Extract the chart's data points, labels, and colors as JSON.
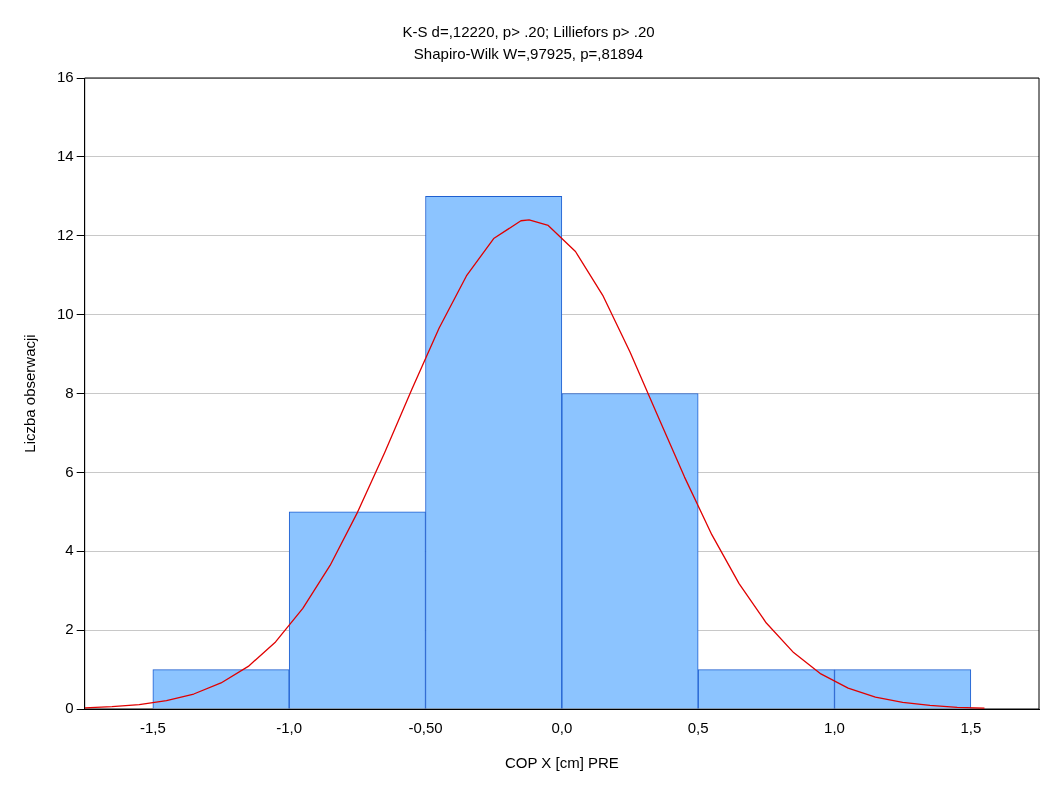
{
  "chart_data": {
    "type": "histogram",
    "title": "K-S d=,12220, p> .20; Lilliefors p> .20",
    "subtitle": "Shapiro-Wilk W=,97925, p=,81894",
    "xlabel": "COP X [cm] PRE",
    "ylabel": "Liczba obserwacji",
    "bins": [
      -1.5,
      -1.0,
      -0.5,
      0,
      0.5,
      1.0,
      1.5
    ],
    "values": [
      1,
      5,
      13,
      8,
      1,
      1
    ],
    "color": "#8cc4ff",
    "series": [
      {
        "type": "line",
        "color": "#e00000",
        "x": [
          -1.75,
          -1.65,
          -1.55,
          -1.45,
          -1.35,
          -1.25,
          -1.15,
          -1.05,
          -0.95,
          -0.85,
          -0.75,
          -0.65,
          -0.55,
          -0.45,
          -0.35,
          -0.25,
          -0.15,
          -0.12,
          -0.05,
          0.05,
          0.15,
          0.25,
          0.35,
          0.45,
          0.55,
          0.65,
          0.75,
          0.85,
          0.95,
          1.05,
          1.15,
          1.25,
          1.35,
          1.45,
          1.55
        ],
        "values": [
          0.03,
          0.06,
          0.11,
          0.21,
          0.38,
          0.66,
          1.08,
          1.7,
          2.55,
          3.64,
          4.98,
          6.5,
          8.11,
          9.66,
          10.98,
          11.93,
          12.38,
          12.4,
          12.26,
          11.6,
          10.49,
          9.05,
          7.46,
          5.88,
          4.42,
          3.18,
          2.18,
          1.43,
          0.89,
          0.53,
          0.3,
          0.17,
          0.09,
          0.04,
          0.02
        ]
      }
    ],
    "xlim": [
      -1.75,
      1.75
    ],
    "xticks": [
      {
        "value": -1.5,
        "label": "-1,5"
      },
      {
        "value": -1.0,
        "label": "-1,0"
      },
      {
        "value": -0.5,
        "label": "-0,50"
      },
      {
        "value": 0,
        "label": "0,0"
      },
      {
        "value": 0.5,
        "label": "0,5"
      },
      {
        "value": 1.0,
        "label": "1,0"
      },
      {
        "value": 1.5,
        "label": "1,5"
      }
    ],
    "ylim": [
      0,
      16
    ],
    "yticks": [
      0,
      2,
      4,
      6,
      8,
      10,
      12,
      14,
      16
    ],
    "grid": "y",
    "legend": false,
    "marker": "none",
    "line_style": "solid"
  }
}
